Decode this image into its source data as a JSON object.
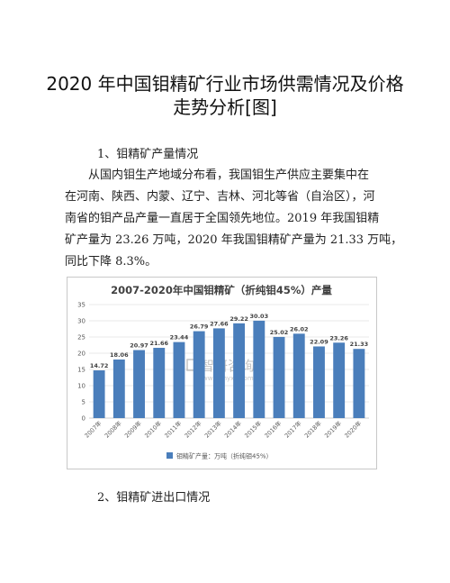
{
  "document": {
    "title_line1": "2020 年中国钼精矿行业市场供需情况及价格",
    "title_line2": "走势分析[图]",
    "section1_heading": "1、钼精矿产量情况",
    "paragraph_lines": [
      "从国内钼生产地域分布看，我国钼生产供应主要集中在",
      "在河南、陕西、内蒙、辽宁、吉林、河北等省（自治区），河",
      "南省的钼产品产量一直居于全国领先地位。2019 年我国钼精",
      "矿产量为 23.26 万吨，2020 年我国钼精矿产量为 21.33 万吨，",
      "同比下降 8.3%。"
    ],
    "section2_heading": "2、钼精矿进出口情况"
  },
  "watermark": {
    "text": "智研咨询",
    "url": "www.chyxx.com"
  },
  "chart_data": {
    "type": "bar",
    "title": "2007-2020年中国钼精矿（折纯钼45%）产量",
    "categories": [
      "2007年",
      "2008年",
      "2009年",
      "2010年",
      "2011年",
      "2012年",
      "2013年",
      "2014年",
      "2015年",
      "2016年",
      "2017年",
      "2018年",
      "2019年",
      "2020年"
    ],
    "series": [
      {
        "name": "钼精矿产量：万吨（折纯钼45%）",
        "values": [
          14.72,
          18.06,
          20.97,
          21.66,
          23.44,
          26.79,
          27.66,
          29.22,
          30.03,
          25.02,
          26.02,
          22.09,
          23.26,
          21.33
        ],
        "color": "#4a7ebb"
      }
    ],
    "ylim": [
      0,
      35
    ],
    "yticks": [
      0,
      5,
      10,
      15,
      20,
      25,
      30,
      35
    ],
    "grid": true,
    "legend": "bottom",
    "xlabel": "",
    "ylabel": ""
  }
}
